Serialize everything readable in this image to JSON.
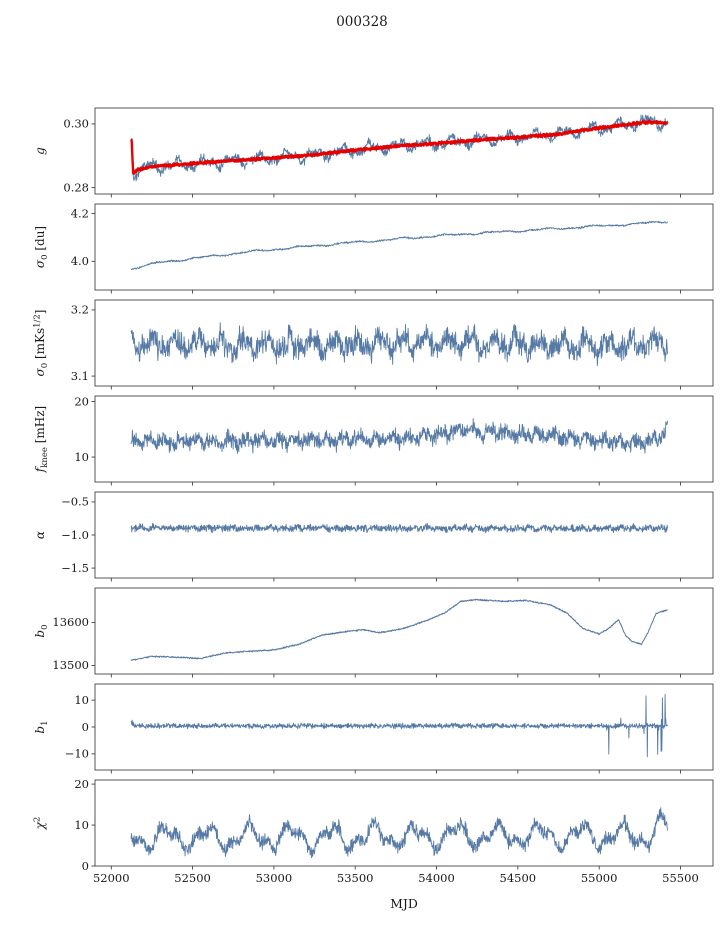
{
  "chart_data": {
    "type": "line",
    "title": "000328",
    "xlabel": "MJD",
    "xlim": [
      51900,
      55700
    ],
    "x_range": [
      52122,
      55420
    ],
    "grid": false,
    "legend": "none",
    "xticks": [
      {
        "v": 52000,
        "label": "52000"
      },
      {
        "v": 52500,
        "label": "52500"
      },
      {
        "v": 53000,
        "label": "53000"
      },
      {
        "v": 53500,
        "label": "53500"
      },
      {
        "v": 54000,
        "label": "54000"
      },
      {
        "v": 54500,
        "label": "54500"
      },
      {
        "v": 55000,
        "label": "55000"
      },
      {
        "v": 55500,
        "label": "55500"
      }
    ],
    "colors": {
      "data_line": "#567aa5",
      "fit_line": "#e60000",
      "axis": "#2d2d2d"
    },
    "panels": [
      {
        "name": "g",
        "ylabel_parts": [
          {
            "t": "g",
            "i": true
          }
        ],
        "ylim": [
          0.278,
          0.305
        ],
        "yticks": [
          {
            "v": 0.28,
            "label": "0.28"
          },
          {
            "v": 0.3,
            "label": "0.30"
          }
        ],
        "series": [
          {
            "role": "data",
            "color": "#567aa5",
            "width": 0.9,
            "points": 1600,
            "seed": 11,
            "noise": 0.0011,
            "wobble": {
              "amp": 0.0013,
              "period": 170
            },
            "trend": [
              [
                52125,
                0.2953
              ],
              [
                52135,
                0.2843
              ],
              [
                52160,
                0.2856
              ],
              [
                52250,
                0.2866
              ],
              [
                52500,
                0.2876
              ],
              [
                52750,
                0.2885
              ],
              [
                53000,
                0.2893
              ],
              [
                53250,
                0.2903
              ],
              [
                53500,
                0.2918
              ],
              [
                53750,
                0.293
              ],
              [
                54000,
                0.2939
              ],
              [
                54250,
                0.2949
              ],
              [
                54500,
                0.2958
              ],
              [
                54750,
                0.2968
              ],
              [
                55000,
                0.2987
              ],
              [
                55150,
                0.2997
              ],
              [
                55300,
                0.3006
              ],
              [
                55420,
                0.3003
              ]
            ]
          },
          {
            "role": "fit",
            "color": "#e60000",
            "width": 2.4,
            "points": 1600,
            "seed": 21,
            "noise": 0.00035,
            "trend": [
              [
                52125,
                0.2953
              ],
              [
                52135,
                0.2843
              ],
              [
                52160,
                0.2856
              ],
              [
                52250,
                0.2866
              ],
              [
                52500,
                0.2876
              ],
              [
                52750,
                0.2885
              ],
              [
                53000,
                0.2893
              ],
              [
                53250,
                0.2903
              ],
              [
                53500,
                0.2918
              ],
              [
                53750,
                0.293
              ],
              [
                54000,
                0.2939
              ],
              [
                54250,
                0.2949
              ],
              [
                54500,
                0.2958
              ],
              [
                54750,
                0.2968
              ],
              [
                55000,
                0.2987
              ],
              [
                55150,
                0.2997
              ],
              [
                55300,
                0.3006
              ],
              [
                55420,
                0.3003
              ]
            ]
          }
        ]
      },
      {
        "name": "sigma0-du",
        "ylabel_parts": [
          {
            "t": "σ",
            "i": true
          },
          {
            "t": "0",
            "sub": true
          },
          {
            "t": " [du]"
          }
        ],
        "ylim": [
          3.88,
          4.24
        ],
        "yticks": [
          {
            "v": 4.0,
            "label": "4.0"
          },
          {
            "v": 4.2,
            "label": "4.2"
          }
        ],
        "series": [
          {
            "role": "data",
            "color": "#567aa5",
            "width": 0.9,
            "points": 1500,
            "seed": 31,
            "noise": 0.003,
            "wobble": {
              "amp": 0.003,
              "period": 300
            },
            "trend": [
              [
                52122,
                3.968
              ],
              [
                52300,
                3.996
              ],
              [
                52500,
                4.012
              ],
              [
                52800,
                4.036
              ],
              [
                53100,
                4.056
              ],
              [
                53400,
                4.074
              ],
              [
                53700,
                4.09
              ],
              [
                54000,
                4.106
              ],
              [
                54300,
                4.12
              ],
              [
                54600,
                4.131
              ],
              [
                54900,
                4.144
              ],
              [
                55100,
                4.152
              ],
              [
                55250,
                4.158
              ],
              [
                55420,
                4.168
              ]
            ]
          }
        ]
      },
      {
        "name": "sigma0-mks",
        "ylabel_parts": [
          {
            "t": "σ",
            "i": true
          },
          {
            "t": "0",
            "sub": true
          },
          {
            "t": " [mKs"
          },
          {
            "t": "1/2",
            "sup": true
          },
          {
            "t": "]"
          }
        ],
        "ylim": [
          3.085,
          3.215
        ],
        "yticks": [
          {
            "v": 3.1,
            "label": "3.1"
          },
          {
            "v": 3.2,
            "label": "3.2"
          }
        ],
        "series": [
          {
            "role": "data",
            "color": "#567aa5",
            "width": 0.9,
            "points": 1500,
            "seed": 41,
            "noise": 0.015,
            "wobble": {
              "amp": 0.009,
              "period": 140
            },
            "trend": [
              [
                52122,
                3.149
              ],
              [
                53000,
                3.146
              ],
              [
                54000,
                3.151
              ],
              [
                55000,
                3.146
              ],
              [
                55420,
                3.149
              ]
            ]
          }
        ]
      },
      {
        "name": "f-knee",
        "ylabel_parts": [
          {
            "t": "f",
            "i": true
          },
          {
            "t": "knee",
            "sub": true
          },
          {
            "t": " [mHz]"
          }
        ],
        "ylim": [
          5.5,
          21
        ],
        "yticks": [
          {
            "v": 10,
            "label": "10"
          },
          {
            "v": 20,
            "label": "20"
          }
        ],
        "series": [
          {
            "role": "data",
            "color": "#567aa5",
            "width": 0.9,
            "points": 1600,
            "seed": 51,
            "noise": 1.15,
            "wobble": {
              "amp": 0.55,
              "period": 100
            },
            "trend": [
              [
                52122,
                13.0
              ],
              [
                52600,
                12.8
              ],
              [
                53100,
                13.0
              ],
              [
                53600,
                13.2
              ],
              [
                53900,
                13.6
              ],
              [
                54050,
                14.2
              ],
              [
                54150,
                15.0
              ],
              [
                54300,
                14.4
              ],
              [
                54600,
                14.1
              ],
              [
                54800,
                13.6
              ],
              [
                55000,
                12.9
              ],
              [
                55200,
                12.5
              ],
              [
                55340,
                12.9
              ],
              [
                55400,
                14.5
              ],
              [
                55420,
                15.3
              ]
            ]
          }
        ]
      },
      {
        "name": "alpha",
        "ylabel_parts": [
          {
            "t": "α",
            "i": true
          }
        ],
        "ylim": [
          -1.65,
          -0.35
        ],
        "yticks": [
          {
            "v": -0.5,
            "label": "−0.5"
          },
          {
            "v": -1.0,
            "label": "−1.0"
          },
          {
            "v": -1.5,
            "label": "−1.5"
          }
        ],
        "series": [
          {
            "role": "data",
            "color": "#567aa5",
            "width": 0.9,
            "points": 1600,
            "seed": 61,
            "noise": 0.042,
            "wobble": {
              "amp": 0.012,
              "period": 80
            },
            "trend": [
              [
                52122,
                -0.895
              ],
              [
                55420,
                -0.9
              ]
            ]
          }
        ]
      },
      {
        "name": "b0",
        "ylabel_parts": [
          {
            "t": "b",
            "i": true
          },
          {
            "t": "0",
            "sub": true
          }
        ],
        "ylim": [
          13480,
          13680
        ],
        "yticks": [
          {
            "v": 13500,
            "label": "13500"
          },
          {
            "v": 13600,
            "label": "13600"
          }
        ],
        "series": [
          {
            "role": "data",
            "color": "#567aa5",
            "width": 1.0,
            "points": 1500,
            "seed": 71,
            "noise": 1.3,
            "trend": [
              [
                52122,
                13512
              ],
              [
                52250,
                13521
              ],
              [
                52400,
                13519
              ],
              [
                52550,
                13516
              ],
              [
                52700,
                13529
              ],
              [
                52850,
                13533
              ],
              [
                53000,
                13536
              ],
              [
                53150,
                13549
              ],
              [
                53300,
                13571
              ],
              [
                53450,
                13579
              ],
              [
                53550,
                13583
              ],
              [
                53650,
                13576
              ],
              [
                53800,
                13586
              ],
              [
                53950,
                13606
              ],
              [
                54050,
                13622
              ],
              [
                54150,
                13649
              ],
              [
                54250,
                13653
              ],
              [
                54400,
                13649
              ],
              [
                54550,
                13651
              ],
              [
                54700,
                13641
              ],
              [
                54800,
                13622
              ],
              [
                54900,
                13586
              ],
              [
                55000,
                13573
              ],
              [
                55060,
                13586
              ],
              [
                55120,
                13607
              ],
              [
                55160,
                13571
              ],
              [
                55200,
                13556
              ],
              [
                55260,
                13549
              ],
              [
                55300,
                13576
              ],
              [
                55350,
                13621
              ],
              [
                55420,
                13629
              ]
            ]
          }
        ]
      },
      {
        "name": "b1",
        "ylabel_parts": [
          {
            "t": "b",
            "i": true
          },
          {
            "t": "1",
            "sub": true
          }
        ],
        "ylim": [
          -16,
          16
        ],
        "yticks": [
          {
            "v": -10,
            "label": "−10"
          },
          {
            "v": 0,
            "label": "0"
          },
          {
            "v": 10,
            "label": "10"
          }
        ],
        "series": [
          {
            "role": "data",
            "color": "#567aa5",
            "width": 0.9,
            "points": 1600,
            "seed": 81,
            "noise": 0.75,
            "burst": {
              "x0": 55040,
              "x1": 55420,
              "amp": 13,
              "p": 0.08
            },
            "trend": [
              [
                52122,
                2.0
              ],
              [
                52150,
                0.4
              ],
              [
                55420,
                0.4
              ]
            ]
          }
        ]
      },
      {
        "name": "chi2",
        "ylabel_parts": [
          {
            "t": "χ",
            "i": true
          },
          {
            "t": "2",
            "sup": true
          }
        ],
        "ylim": [
          0,
          21
        ],
        "yticks": [
          {
            "v": 0,
            "label": "0"
          },
          {
            "v": 10,
            "label": "10"
          },
          {
            "v": 20,
            "label": "20"
          }
        ],
        "series": [
          {
            "role": "data",
            "color": "#567aa5",
            "width": 0.9,
            "points": 1600,
            "seed": 91,
            "noise": 1.4,
            "wobble": {
              "amp": 2.3,
              "period": 255
            },
            "trend": [
              [
                52122,
                6.8
              ],
              [
                54500,
                7.4
              ],
              [
                55300,
                7.2
              ],
              [
                55380,
                10.0
              ],
              [
                55420,
                8.3
              ]
            ]
          }
        ]
      }
    ]
  }
}
